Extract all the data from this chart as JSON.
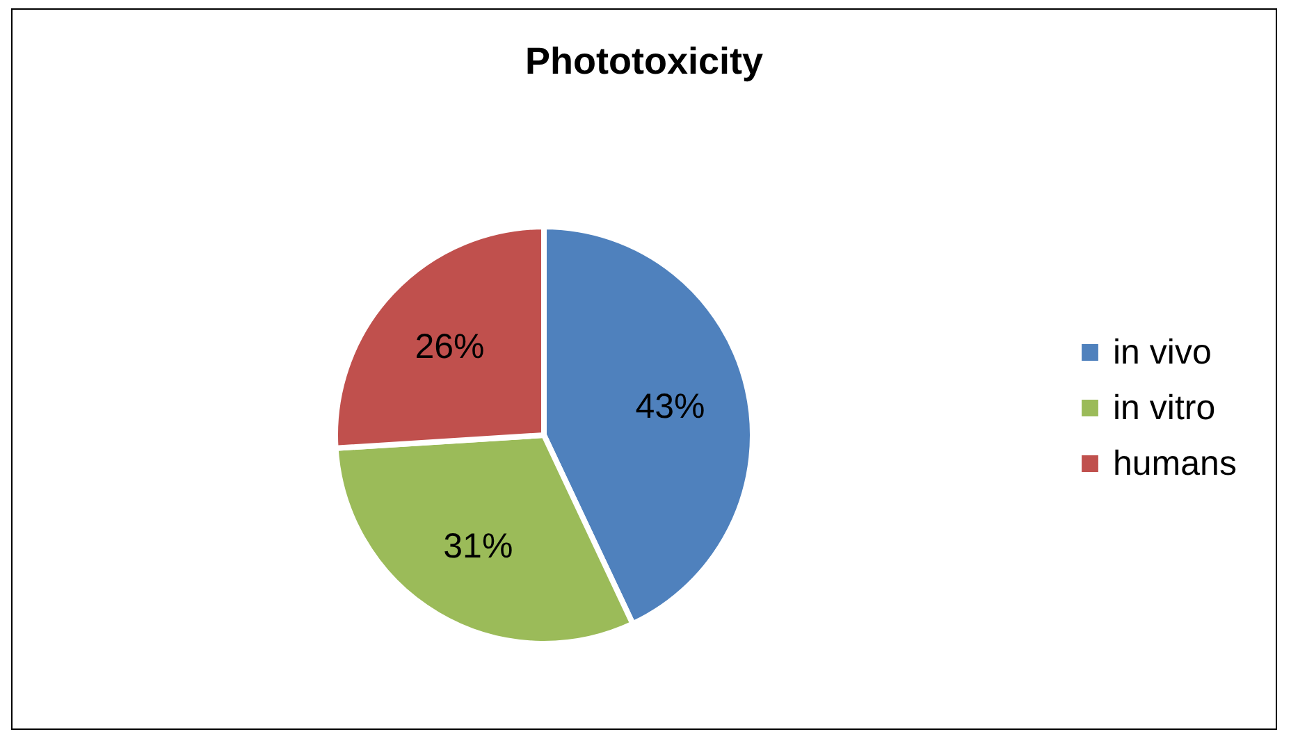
{
  "chart_data": {
    "type": "pie",
    "title": "Phototoxicity",
    "categories": [
      "in vivo",
      "in vitro",
      "humans"
    ],
    "values": [
      43,
      31,
      26
    ],
    "colors": [
      "#4f81bd",
      "#9bbb59",
      "#c0504d"
    ],
    "value_labels": [
      "43%",
      "31%",
      "26%"
    ],
    "legend": "right"
  }
}
